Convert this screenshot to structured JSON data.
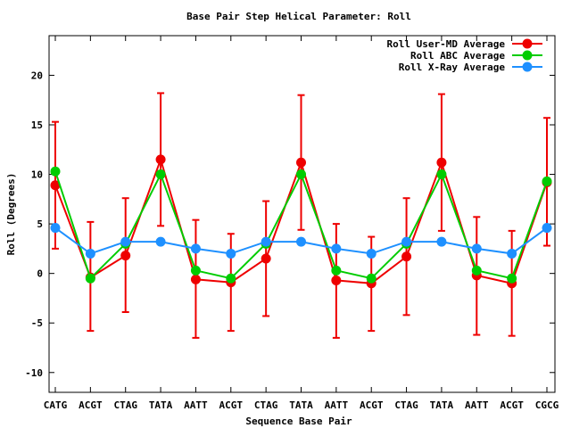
{
  "chart_data": {
    "type": "line",
    "title": "Base Pair Step Helical Parameter: Roll",
    "xlabel": "Sequence Base Pair",
    "ylabel": "Roll (Degrees)",
    "ylim": [
      -12,
      24
    ],
    "yticks": [
      -10,
      -5,
      0,
      5,
      10,
      15,
      20
    ],
    "grid": false,
    "legend_position": "top-right",
    "categories": [
      "CATG",
      "ACGT",
      "CTAG",
      "TATA",
      "AATT",
      "ACGT",
      "CTAG",
      "TATA",
      "AATT",
      "ACGT",
      "CTAG",
      "TATA",
      "AATT",
      "ACGT",
      "CGCG"
    ],
    "series": [
      {
        "name": "Roll User-MD Average",
        "color": "#ee0000",
        "values": [
          8.9,
          -0.4,
          1.8,
          11.5,
          -0.6,
          -0.9,
          1.5,
          11.2,
          -0.7,
          -1.0,
          1.7,
          11.2,
          -0.2,
          -1.0,
          9.2
        ],
        "error_low": [
          2.5,
          -5.8,
          -3.9,
          4.8,
          -6.5,
          -5.8,
          -4.3,
          4.4,
          -6.5,
          -5.8,
          -4.2,
          4.3,
          -6.2,
          -6.3,
          2.8
        ],
        "error_high": [
          15.3,
          5.2,
          7.6,
          18.2,
          5.4,
          4.0,
          7.3,
          18.0,
          5.0,
          3.7,
          7.6,
          18.1,
          5.7,
          4.3,
          15.7
        ]
      },
      {
        "name": "Roll ABC Average",
        "color": "#00cc00",
        "values": [
          10.3,
          -0.5,
          3.0,
          10.0,
          0.3,
          -0.5,
          3.0,
          10.0,
          0.3,
          -0.5,
          3.0,
          10.0,
          0.3,
          -0.5,
          9.3
        ]
      },
      {
        "name": "Roll X-Ray Average",
        "color": "#1e90ff",
        "values": [
          4.6,
          2.0,
          3.2,
          3.2,
          2.5,
          2.0,
          3.2,
          3.2,
          2.5,
          2.0,
          3.2,
          3.2,
          2.5,
          2.0,
          4.6
        ]
      }
    ]
  }
}
